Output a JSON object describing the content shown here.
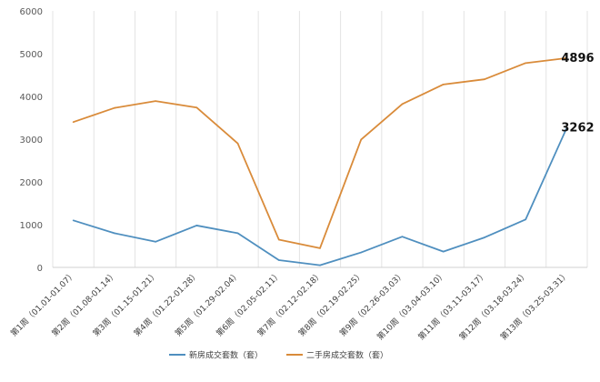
{
  "chart_data": {
    "type": "line",
    "categories": [
      "第1周（01.01-01.07）",
      "第2周（01.08-01.14）",
      "第3周（01.15-01.21）",
      "第4周（01.22-01.28）",
      "第5周（01.29-02.04）",
      "第6周（02.05-02.11）",
      "第7周（02.12-02.18）",
      "第8周（02.19-02.25）",
      "第9周（02.26-03.03）",
      "第10周（03.04-03.10）",
      "第11周（03.11-03.17）",
      "第12周（03.18-03.24）",
      "第13周（03.25-03.31）"
    ],
    "series": [
      {
        "name": "新房成交套数（套）",
        "color": "#4f8fbf",
        "values": [
          1100,
          800,
          600,
          980,
          800,
          170,
          50,
          350,
          720,
          370,
          700,
          1120,
          3262
        ],
        "end_label": "3262"
      },
      {
        "name": "二手房成交套数（套）",
        "color": "#d98b3a",
        "values": [
          3400,
          3730,
          3890,
          3740,
          2900,
          650,
          450,
          2990,
          3820,
          4280,
          4400,
          4780,
          4896
        ],
        "end_label": "4896"
      }
    ],
    "ylim": [
      0,
      6000
    ],
    "yticks": [
      "0",
      "1000",
      "2000",
      "3000",
      "4000",
      "5000",
      "6000"
    ],
    "grid": "vertical",
    "legend": "bottom"
  }
}
